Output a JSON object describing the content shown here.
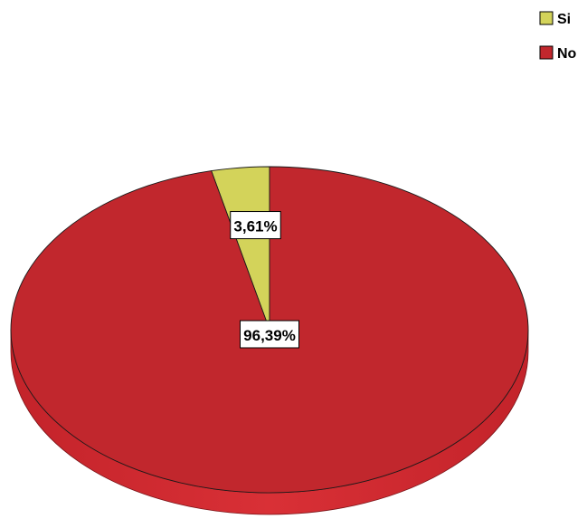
{
  "chart_data": {
    "type": "pie",
    "style": "3d",
    "title": "",
    "slices": [
      {
        "label": "Si",
        "value": 3.61,
        "display": "3,61%",
        "color": "#d3d35a"
      },
      {
        "label": "No",
        "value": 96.39,
        "display": "96,39%",
        "color": "#c1272d"
      }
    ],
    "legend": {
      "position": "top-right",
      "entries": [
        "Si",
        "No"
      ]
    }
  }
}
